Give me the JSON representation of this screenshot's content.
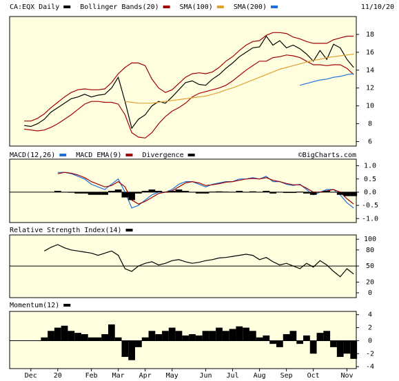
{
  "date": "11/10/20",
  "watermark": "©BigCharts.com",
  "chart_data": [
    {
      "type": "line",
      "ylim": [
        5.5,
        20
      ],
      "yticks": [
        6,
        8,
        10,
        12,
        14,
        16,
        18
      ],
      "series": [
        {
          "name": "CA:EQX Daily",
          "color": "#000000",
          "values": [
            7.8,
            7.7,
            8.0,
            8.5,
            9.3,
            9.8,
            10.3,
            10.8,
            11.0,
            11.3,
            11.0,
            11.2,
            11.3,
            12.0,
            13.2,
            10.5,
            7.5,
            8.5,
            9.0,
            10.0,
            10.5,
            10.3,
            11.0,
            11.8,
            12.6,
            12.8,
            12.4,
            12.3,
            13.0,
            13.5,
            14.2,
            14.8,
            15.5,
            16.0,
            16.5,
            16.6,
            17.8,
            16.8,
            17.3,
            16.5,
            16.8,
            16.4,
            15.8,
            15.0,
            16.2,
            15.2,
            16.9,
            16.5,
            15.2,
            14.3
          ]
        },
        {
          "name": "Bollinger Bands(20)",
          "color": "#a00000",
          "upper": [
            8.3,
            8.3,
            8.6,
            9.1,
            9.8,
            10.4,
            11.0,
            11.5,
            11.8,
            11.9,
            11.8,
            11.8,
            11.9,
            12.6,
            13.6,
            14.3,
            14.8,
            14.8,
            14.5,
            13.0,
            12.0,
            11.5,
            11.8,
            12.5,
            13.2,
            13.6,
            13.7,
            13.6,
            13.8,
            14.3,
            15.0,
            15.5,
            16.2,
            16.8,
            17.2,
            17.3,
            17.9,
            18.2,
            18.2,
            18.1,
            17.7,
            17.5,
            17.2,
            17.0,
            17.0,
            17.0,
            17.4,
            17.6,
            17.8,
            17.8
          ],
          "lower": [
            7.4,
            7.3,
            7.2,
            7.3,
            7.6,
            8.0,
            8.5,
            9.0,
            9.6,
            10.2,
            10.5,
            10.5,
            10.4,
            10.4,
            10.2,
            9.0,
            7.0,
            6.5,
            6.4,
            7.0,
            8.0,
            8.8,
            9.4,
            9.8,
            10.3,
            11.0,
            11.4,
            11.6,
            11.8,
            12.0,
            12.3,
            12.8,
            13.4,
            14.0,
            14.5,
            15.0,
            15.0,
            15.4,
            15.5,
            15.7,
            15.6,
            15.4,
            15.0,
            14.6,
            14.6,
            14.5,
            14.6,
            14.6,
            14.2,
            13.5
          ]
        },
        {
          "name": "SMA(100)",
          "color": "#e0a030",
          "values": [
            null,
            null,
            null,
            null,
            null,
            null,
            null,
            null,
            null,
            null,
            null,
            null,
            null,
            null,
            null,
            10.5,
            10.4,
            10.3,
            10.3,
            10.3,
            10.4,
            10.5,
            10.6,
            10.7,
            10.8,
            10.9,
            11.0,
            11.1,
            11.3,
            11.5,
            11.8,
            12.0,
            12.3,
            12.6,
            12.9,
            13.2,
            13.5,
            13.8,
            14.1,
            14.3,
            14.5,
            14.7,
            14.9,
            15.1,
            15.2,
            15.4,
            15.5,
            15.6,
            15.7,
            15.8
          ]
        },
        {
          "name": "SMA(200)",
          "color": "#1e6fd9",
          "values": [
            null,
            null,
            null,
            null,
            null,
            null,
            null,
            null,
            null,
            null,
            null,
            null,
            null,
            null,
            null,
            null,
            null,
            null,
            null,
            null,
            null,
            null,
            null,
            null,
            null,
            null,
            null,
            null,
            null,
            null,
            null,
            null,
            null,
            null,
            null,
            null,
            null,
            null,
            null,
            null,
            null,
            12.3,
            12.5,
            12.7,
            12.9,
            13.0,
            13.2,
            13.3,
            13.5,
            13.6
          ]
        }
      ]
    },
    {
      "type": "line",
      "ylim": [
        -1.15,
        1.25
      ],
      "yticks": [
        {
          "value": 1.0,
          "label": "1.0"
        },
        {
          "value": 0.5,
          "label": "0.5"
        },
        {
          "value": 0.0,
          "label": "0.0"
        },
        {
          "value": -0.5,
          "label": "-0.5"
        },
        {
          "value": -1.0,
          "label": "-1.0"
        }
      ],
      "ref_line": 0,
      "series": [
        {
          "name": "MACD(12,26)",
          "color": "#1e6fd9",
          "values": [
            null,
            null,
            null,
            null,
            null,
            0.75,
            0.75,
            0.7,
            0.6,
            0.5,
            0.3,
            0.2,
            0.1,
            0.3,
            0.5,
            0.0,
            -0.6,
            -0.5,
            -0.3,
            -0.1,
            0.0,
            0.0,
            0.1,
            0.3,
            0.4,
            0.4,
            0.3,
            0.2,
            0.3,
            0.35,
            0.4,
            0.4,
            0.5,
            0.5,
            0.55,
            0.5,
            0.6,
            0.4,
            0.4,
            0.3,
            0.25,
            0.3,
            0.1,
            -0.1,
            0.0,
            0.1,
            0.1,
            -0.1,
            -0.4,
            -0.6
          ]
        },
        {
          "name": "MACD EMA(9)",
          "color": "#a00000",
          "values": [
            null,
            null,
            null,
            null,
            null,
            0.7,
            0.75,
            0.72,
            0.65,
            0.55,
            0.4,
            0.3,
            0.2,
            0.25,
            0.4,
            0.2,
            -0.3,
            -0.45,
            -0.35,
            -0.2,
            -0.05,
            0.0,
            0.05,
            0.2,
            0.35,
            0.4,
            0.35,
            0.25,
            0.28,
            0.32,
            0.38,
            0.4,
            0.45,
            0.5,
            0.52,
            0.5,
            0.55,
            0.45,
            0.4,
            0.33,
            0.28,
            0.28,
            0.15,
            0.0,
            0.0,
            0.05,
            0.1,
            0.0,
            -0.25,
            -0.45
          ]
        },
        {
          "name": "Divergence",
          "color": "#000000",
          "style": "bar",
          "values": [
            null,
            null,
            null,
            null,
            null,
            0.05,
            0,
            -0.02,
            -0.05,
            -0.05,
            -0.1,
            -0.1,
            -0.1,
            0.05,
            0.1,
            -0.2,
            -0.3,
            -0.05,
            0.05,
            0.1,
            0.05,
            0,
            0.05,
            0.1,
            0.05,
            0,
            -0.05,
            -0.05,
            0.02,
            0.03,
            0.02,
            0,
            0.05,
            0,
            0.03,
            0,
            0.05,
            -0.05,
            0,
            -0.03,
            -0.03,
            0.02,
            -0.05,
            -0.1,
            0,
            0.05,
            0,
            -0.1,
            -0.15,
            -0.15
          ]
        }
      ]
    },
    {
      "type": "line",
      "ylim": [
        -9,
        108
      ],
      "yticks": [
        100,
        80,
        50,
        20,
        0
      ],
      "ref_line": 50,
      "series": [
        {
          "name": "Relative Strength Index(14)",
          "color": "#000000",
          "values": [
            null,
            null,
            null,
            78,
            85,
            90,
            84,
            80,
            78,
            76,
            74,
            70,
            74,
            78,
            70,
            45,
            40,
            50,
            55,
            58,
            52,
            55,
            60,
            62,
            58,
            55,
            57,
            60,
            62,
            65,
            66,
            68,
            70,
            72,
            70,
            62,
            66,
            58,
            52,
            55,
            50,
            45,
            55,
            48,
            60,
            52,
            40,
            30,
            45,
            35
          ]
        }
      ]
    },
    {
      "type": "bar",
      "ylim": [
        -4.3,
        4.5
      ],
      "yticks": [
        4,
        2,
        0,
        -2,
        -4
      ],
      "ref_line": 0,
      "categories": [
        null,
        "Dec",
        null,
        null,
        null,
        "20",
        null,
        null,
        null,
        null,
        "Feb",
        null,
        null,
        null,
        "Mar",
        null,
        null,
        null,
        "Apr",
        null,
        null,
        null,
        "May",
        null,
        null,
        null,
        null,
        "Jun",
        null,
        null,
        null,
        "Jul",
        null,
        null,
        null,
        "Aug",
        null,
        null,
        null,
        "Sep",
        null,
        null,
        null,
        "Oct",
        null,
        null,
        null,
        null,
        "Nov",
        null
      ],
      "series": [
        {
          "name": "Momentum(12)",
          "color": "#000000",
          "values": [
            null,
            null,
            null,
            0.5,
            1.5,
            2.0,
            2.3,
            1.5,
            1.2,
            1.0,
            0.5,
            0.5,
            1.0,
            2.5,
            0.5,
            -2.5,
            -3.0,
            -1.0,
            0.5,
            1.5,
            1.0,
            1.5,
            2.0,
            1.5,
            0.8,
            1.0,
            0.8,
            1.5,
            1.5,
            2.0,
            1.5,
            1.8,
            2.2,
            2.0,
            1.5,
            0.5,
            0.8,
            -0.5,
            -1.0,
            1.0,
            1.5,
            -0.5,
            0.8,
            -2.0,
            1.2,
            1.5,
            -1.0,
            -2.5,
            -2.0,
            -2.8
          ]
        }
      ]
    }
  ]
}
